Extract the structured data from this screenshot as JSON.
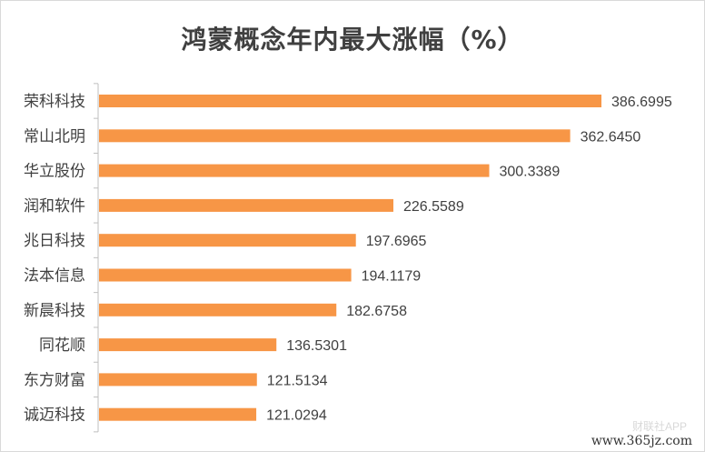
{
  "chart_data": {
    "type": "bar",
    "orientation": "horizontal",
    "title": "鸿蒙概念年内最大涨幅（%）",
    "xlabel": "",
    "ylabel": "",
    "categories": [
      "荣科科技",
      "常山北明",
      "华立股份",
      "润和软件",
      "兆日科技",
      "法本信息",
      "新晨科技",
      "同花顺",
      "东方财富",
      "诚迈科技"
    ],
    "values": [
      386.6995,
      362.645,
      300.3389,
      226.5589,
      197.6965,
      194.1179,
      182.6758,
      136.5301,
      121.5134,
      121.0294
    ],
    "data_labels": [
      "386.6995",
      "362.6450",
      "300.3389",
      "226.5589",
      "197.6965",
      "194.1179",
      "182.6758",
      "136.5301",
      "121.5134",
      "121.0294"
    ],
    "xlim": [
      0,
      400
    ],
    "grid": false,
    "legend": "none",
    "bar_color": "#f79646",
    "axis_color": "#bfbfbf",
    "label_color": "#404040"
  },
  "watermark": {
    "text": "www.365jz.com",
    "faint_text": "财联社APP"
  }
}
